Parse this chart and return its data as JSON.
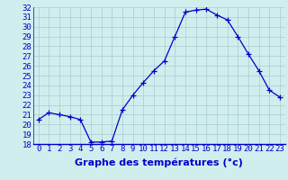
{
  "hours": [
    0,
    1,
    2,
    3,
    4,
    5,
    6,
    7,
    8,
    9,
    10,
    11,
    12,
    13,
    14,
    15,
    16,
    17,
    18,
    19,
    20,
    21,
    22,
    23
  ],
  "temps": [
    20.5,
    21.2,
    21.0,
    20.8,
    20.5,
    18.2,
    18.2,
    18.3,
    21.5,
    23.0,
    24.3,
    25.5,
    26.5,
    29.0,
    31.5,
    31.7,
    31.8,
    31.2,
    30.7,
    29.0,
    27.2,
    25.5,
    23.5,
    22.8
  ],
  "line_color": "#0000cc",
  "marker": "+",
  "marker_size": 4,
  "bg_color": "#d0eeee",
  "grid_color": "#a8cccc",
  "ylim": [
    18,
    32
  ],
  "yticks": [
    18,
    19,
    20,
    21,
    22,
    23,
    24,
    25,
    26,
    27,
    28,
    29,
    30,
    31,
    32
  ],
  "xlabel": "Graphe des températures (°c)",
  "xlabel_color": "#0000cc",
  "tick_label_color": "#0000cc",
  "tick_fontsize": 6.5,
  "xlabel_fontsize": 8
}
